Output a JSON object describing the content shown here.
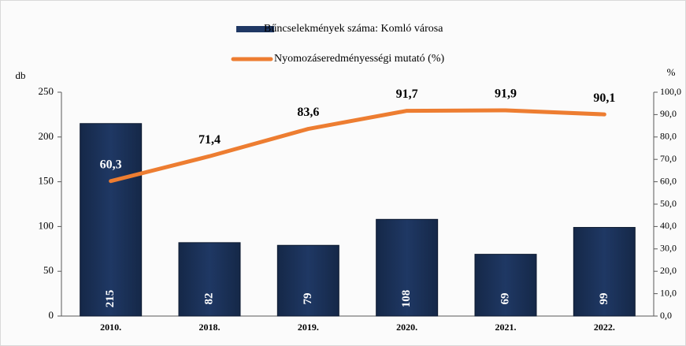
{
  "chart_data": {
    "type": "bar-line",
    "categories": [
      "2010.",
      "2018.",
      "2019.",
      "2020.",
      "2021.",
      "2022."
    ],
    "series": [
      {
        "name": "Bűncselekmények száma: Komló városa",
        "type": "bar",
        "color": "#1f3864",
        "values": [
          215,
          82,
          79,
          108,
          69,
          99
        ]
      },
      {
        "name": "Nyomozáseredményességi mutató (%)",
        "type": "line",
        "axis": "y2",
        "color": "#ed7d31",
        "values": [
          60.3,
          71.4,
          83.6,
          91.7,
          91.9,
          90.1
        ],
        "value_labels": [
          "60,3",
          "71,4",
          "83,6",
          "91,7",
          "91,9",
          "90,1"
        ]
      }
    ],
    "y_label": "db",
    "y2_label": "%",
    "ylim": [
      0,
      250
    ],
    "yticks": [
      0,
      50,
      100,
      150,
      200,
      250
    ],
    "y2lim": [
      0,
      100
    ],
    "y2ticks": [
      {
        "value": 0,
        "label": "0,0"
      },
      {
        "value": 10,
        "label": "10,0"
      },
      {
        "value": 20,
        "label": "20,0"
      },
      {
        "value": 30,
        "label": "30,0"
      },
      {
        "value": 40,
        "label": "40,0"
      },
      {
        "value": 50,
        "label": "50,0"
      },
      {
        "value": 60,
        "label": "60,0"
      },
      {
        "value": 70,
        "label": "70,0"
      },
      {
        "value": 80,
        "label": "80,0"
      },
      {
        "value": 90,
        "label": "90,0"
      },
      {
        "value": 100,
        "label": "100,0"
      }
    ]
  }
}
